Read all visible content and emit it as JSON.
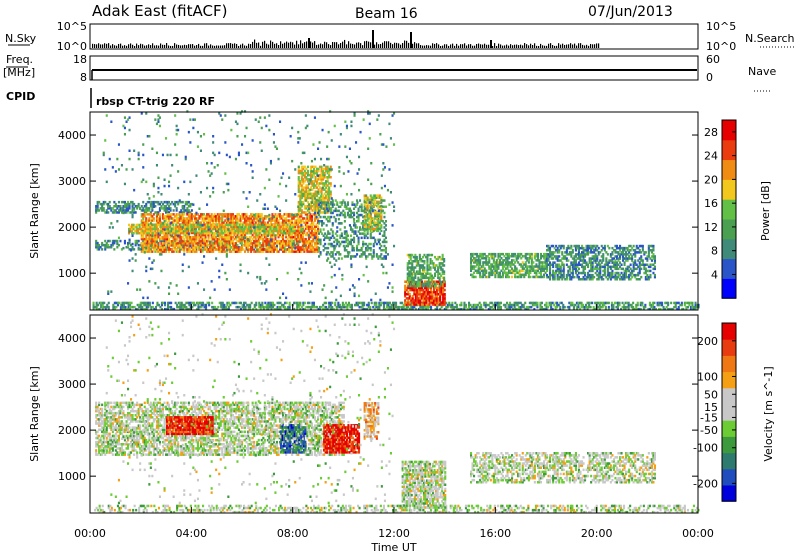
{
  "header": {
    "station": "Adak East (fitACF)",
    "beam": "Beam 16",
    "date": "07/Jun/2013"
  },
  "summary_panels": {
    "nsky_label": "N.Sky",
    "nsky_ticks": [
      "10^5",
      "10^0"
    ],
    "nsearch_label": "N.Search",
    "nsearch_ticks": [
      "10^5",
      "10^0"
    ],
    "freq_label": "Freq.",
    "freq_unit": "[MHz]",
    "freq_ticks": [
      "18",
      "8"
    ],
    "nave_label": "Nave",
    "nave_ticks": [
      "60",
      "0"
    ],
    "cpid_label": "CPID",
    "cpid_value": "rbsp CT-trig 220 RF"
  },
  "x_axis": {
    "label": "Time UT",
    "ticks": [
      "00:00",
      "04:00",
      "08:00",
      "12:00",
      "16:00",
      "20:00",
      "00:00"
    ]
  },
  "colors": {
    "power_scale": [
      "#0000ff",
      "#2a55c8",
      "#3f8a78",
      "#4aa050",
      "#62c046",
      "#f2c81e",
      "#f08c14",
      "#eb3c0f",
      "#e60000"
    ],
    "velocity_scale": [
      "#0000dc",
      "#1f4dbe",
      "#2f7a6e",
      "#3c9a3c",
      "#6ccc33",
      "#c8c8c8",
      "#c8c8c8",
      "#f5a014",
      "#f07814",
      "#e83c10",
      "#e60000"
    ]
  },
  "chart_data": [
    {
      "type": "heatmap",
      "name": "power",
      "ylabel": "Slant Range [km]",
      "xlabel": "",
      "x_range_hours": [
        0,
        24
      ],
      "ylim": [
        200,
        4500
      ],
      "yticks": [
        1000,
        2000,
        3000,
        4000
      ],
      "colorbar": {
        "label": "Power [dB]",
        "range": [
          0,
          30
        ],
        "ticks": [
          4,
          8,
          12,
          16,
          20,
          24,
          28
        ]
      },
      "regions": [
        {
          "t0": 0.1,
          "t1": 24,
          "r0": 200,
          "r1": 380,
          "level": 0.35,
          "density": 0.55
        },
        {
          "t0": 0.2,
          "t1": 8,
          "r0": 1500,
          "r1": 1700,
          "level": 0.3,
          "density": 0.5
        },
        {
          "t0": 0.2,
          "t1": 4,
          "r0": 2300,
          "r1": 2550,
          "level": 0.3,
          "density": 0.55
        },
        {
          "t0": 2,
          "t1": 9,
          "r0": 1450,
          "r1": 2300,
          "level": 0.72,
          "density": 0.75
        },
        {
          "t0": 1.5,
          "t1": 8,
          "r0": 1850,
          "r1": 2050,
          "level": 0.6,
          "density": 0.7
        },
        {
          "t0": 8.2,
          "t1": 9.5,
          "r0": 2300,
          "r1": 3300,
          "level": 0.6,
          "density": 0.65
        },
        {
          "t0": 9,
          "t1": 11.7,
          "r0": 1300,
          "r1": 2600,
          "level": 0.35,
          "density": 0.35
        },
        {
          "t0": 10.8,
          "t1": 11.5,
          "r0": 1900,
          "r1": 2700,
          "level": 0.55,
          "density": 0.7
        },
        {
          "t0": 12.4,
          "t1": 14,
          "r0": 300,
          "r1": 800,
          "level": 0.85,
          "density": 0.8
        },
        {
          "t0": 12.5,
          "t1": 14,
          "r0": 700,
          "r1": 1400,
          "level": 0.4,
          "density": 0.55
        },
        {
          "t0": 15,
          "t1": 18,
          "r0": 900,
          "r1": 1400,
          "level": 0.4,
          "density": 0.65
        },
        {
          "t0": 18,
          "t1": 22.3,
          "r0": 850,
          "r1": 1600,
          "level": 0.3,
          "density": 0.55
        },
        {
          "t0": 0.5,
          "t1": 12,
          "r0": 400,
          "r1": 4500,
          "level": 0.3,
          "density": 0.03
        }
      ]
    },
    {
      "type": "heatmap",
      "name": "velocity",
      "ylabel": "Slant Range [km]",
      "xlabel": "Time UT",
      "x_range_hours": [
        0,
        24
      ],
      "ylim": [
        200,
        4500
      ],
      "yticks": [
        1000,
        2000,
        3000,
        4000
      ],
      "colorbar": {
        "label": "Velocity [m s^-1]",
        "range": [
          -250,
          250
        ],
        "tick_values": [
          200,
          100,
          50,
          15,
          -15,
          -50,
          -100,
          -200
        ],
        "tick_labels": [
          "200",
          "100",
          "50",
          "15",
          "-15",
          "-50",
          "-100",
          "-200"
        ]
      },
      "regions": [
        {
          "t0": 0.1,
          "t1": 24,
          "r0": 200,
          "r1": 380,
          "level": 0.5,
          "density": 0.4
        },
        {
          "t0": 0.2,
          "t1": 10,
          "r0": 1450,
          "r1": 2600,
          "level": 0.5,
          "density": 0.6
        },
        {
          "t0": 3,
          "t1": 4.8,
          "r0": 1900,
          "r1": 2300,
          "level": 0.92,
          "density": 0.85
        },
        {
          "t0": 7.5,
          "t1": 8.5,
          "r0": 1500,
          "r1": 2100,
          "level": 0.2,
          "density": 0.75
        },
        {
          "t0": 9.2,
          "t1": 10.6,
          "r0": 1500,
          "r1": 2100,
          "level": 0.95,
          "density": 0.8
        },
        {
          "t0": 10.8,
          "t1": 11.4,
          "r0": 1800,
          "r1": 2600,
          "level": 0.68,
          "density": 0.7
        },
        {
          "t0": 12.3,
          "t1": 14,
          "r0": 300,
          "r1": 1300,
          "level": 0.5,
          "density": 0.7
        },
        {
          "t0": 15,
          "t1": 22.3,
          "r0": 850,
          "r1": 1500,
          "level": 0.5,
          "density": 0.5
        },
        {
          "t0": 0.5,
          "t1": 12,
          "r0": 400,
          "r1": 4500,
          "level": 0.5,
          "density": 0.03
        }
      ]
    }
  ]
}
